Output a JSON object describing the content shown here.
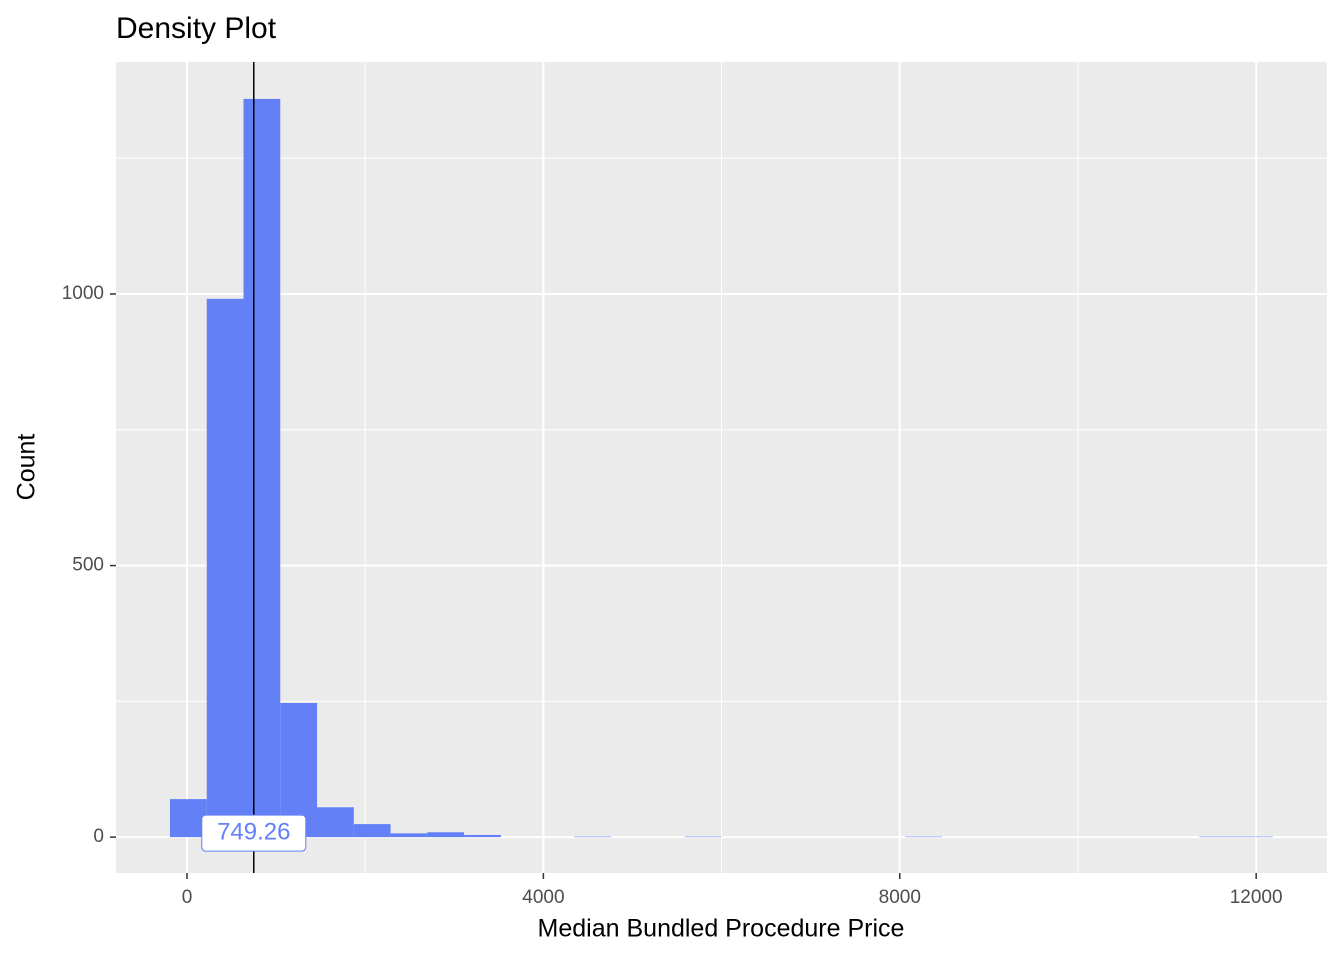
{
  "chart_data": {
    "type": "histogram",
    "title": "Density Plot",
    "x_label": "Median Bundled Procedure Price",
    "y_label": "Count",
    "bins": [
      -191,
      221.6,
      634.2,
      1046.8,
      1459.4,
      1872,
      2284.6,
      2697.2,
      3109.8,
      3522.4,
      3935,
      4347.6,
      4760.2,
      5172.8,
      5585.4,
      5998,
      6410.6,
      6823.2,
      7235.8,
      7648.4,
      8061,
      8473.6,
      8886.2,
      9298.8,
      9711.4,
      10124,
      10536.6,
      10949.2,
      11361.8,
      11774.4,
      12187
    ],
    "values": [
      70,
      991,
      1359,
      247,
      55,
      24,
      7,
      9,
      4,
      0,
      0,
      1,
      0,
      0,
      1,
      0,
      0,
      0,
      0,
      0,
      1,
      0,
      0,
      0,
      0,
      0,
      0,
      0,
      1,
      1
    ],
    "color": "#6380f7",
    "xlim": [
      -797,
      12795
    ],
    "ylim": [
      -66,
      1427
    ],
    "xticks": [
      0,
      4000,
      8000,
      12000
    ],
    "yticks": [
      0,
      500,
      1000
    ],
    "x_minor_grid": [
      2000,
      6000,
      10000
    ],
    "y_minor_grid": [
      250,
      750,
      1250
    ],
    "grid": true,
    "vline": {
      "value": 749.26,
      "label": "749.26"
    }
  }
}
